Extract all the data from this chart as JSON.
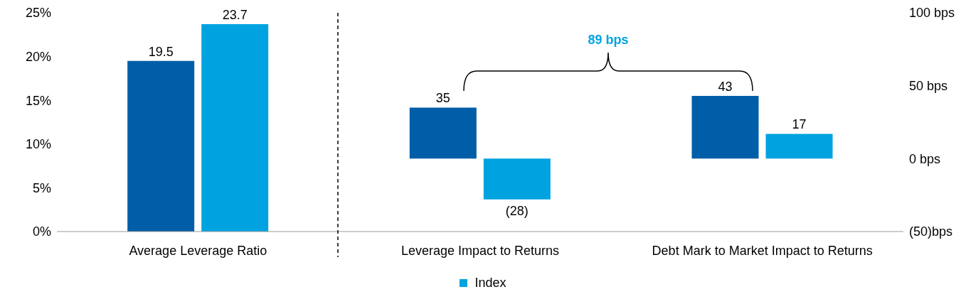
{
  "chart_data": {
    "type": "bar",
    "categories": [
      "Average Leverage Ratio",
      "Leverage Impact to Returns",
      "Debt Mark to Market Impact to Returns"
    ],
    "series": [
      {
        "color": "#005ea8",
        "values": [
          19.5,
          null,
          null
        ],
        "value_labels": [
          "19.5",
          null,
          null
        ]
      },
      {
        "name": "Index",
        "color": "#00a3e0",
        "values": [
          23.7,
          null,
          null
        ],
        "value_labels": [
          "23.7",
          null,
          null
        ]
      },
      {
        "color": "#005ea8",
        "axis": "y2",
        "values": [
          null,
          35,
          43
        ],
        "value_labels": [
          null,
          "35",
          "43"
        ]
      },
      {
        "color": "#00a3e0",
        "axis": "y2",
        "values": [
          null,
          -28,
          17
        ],
        "value_labels": [
          null,
          "(28)",
          "17"
        ]
      }
    ],
    "ylim": [
      0,
      25
    ],
    "yticks": [
      {
        "value": 0,
        "label": "0%"
      },
      {
        "value": 5,
        "label": "5%"
      },
      {
        "value": 10,
        "label": "10%"
      },
      {
        "value": 15,
        "label": "15%"
      },
      {
        "value": 20,
        "label": "20%"
      },
      {
        "value": 25,
        "label": "25%"
      }
    ],
    "y2lim": [
      -50,
      100
    ],
    "y2ticks": [
      {
        "value": -50,
        "label": "(50)bps"
      },
      {
        "value": 0,
        "label": "0 bps"
      },
      {
        "value": 50,
        "label": "50 bps"
      },
      {
        "value": 100,
        "label": "100 bps"
      }
    ],
    "annotations": [
      "89 bps"
    ],
    "legend": "bottom",
    "grid": false
  }
}
